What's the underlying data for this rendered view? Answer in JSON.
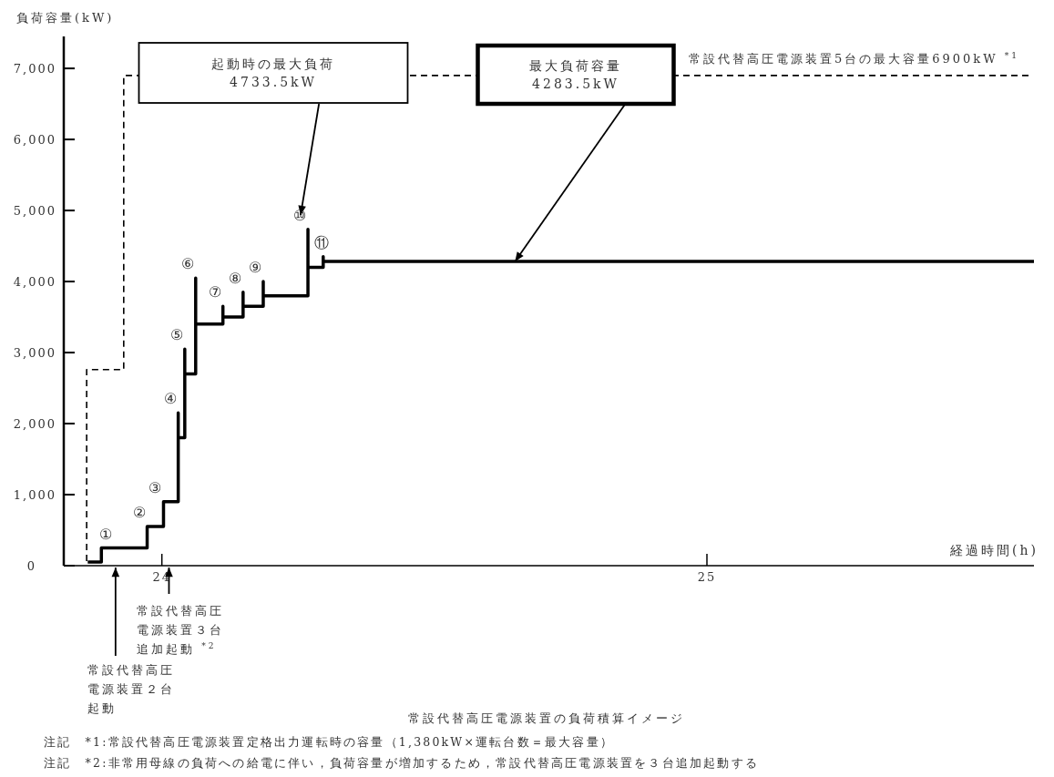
{
  "chart_data": {
    "type": "line",
    "title": "常設代替高圧電源装置の負荷積算イメージ",
    "xlabel": "経過時間(h)",
    "ylabel": "負荷容量(kW)",
    "xlim": [
      23.82,
      25.6
    ],
    "ylim": [
      0,
      7450
    ],
    "xticks": [
      24,
      25
    ],
    "yticks": [
      0,
      {
        "value": 1000,
        "label": "1,000"
      },
      {
        "value": 2000,
        "label": "2,000"
      },
      {
        "value": 3000,
        "label": "3,000"
      },
      {
        "value": 4000,
        "label": "4,000"
      },
      {
        "value": 5000,
        "label": "5,000"
      },
      {
        "value": 6000,
        "label": "6,000"
      },
      {
        "value": 7000,
        "label": "7,000"
      }
    ],
    "grid": false,
    "series": [
      {
        "color": "#000000",
        "line_style": "solid",
        "x": [
          23.864,
          23.889,
          23.889,
          23.973,
          23.973,
          24.003,
          24.003,
          24.03,
          24.03,
          24.03,
          24.042,
          24.042,
          24.042,
          24.062,
          24.062,
          24.062,
          24.112,
          24.112,
          24.112,
          24.149,
          24.149,
          24.149,
          24.186,
          24.186,
          24.186,
          24.268,
          24.268,
          24.268,
          24.296,
          24.296,
          24.296,
          25.6
        ],
        "values": [
          50,
          50,
          250,
          250,
          550,
          550,
          900,
          900,
          2150,
          1800,
          1800,
          3050,
          2700,
          2700,
          4050,
          3400,
          3400,
          3650,
          3500,
          3500,
          3850,
          3650,
          3650,
          4000,
          3800,
          3800,
          4733.5,
          4200,
          4200,
          4350,
          4283.5,
          4283.5
        ]
      },
      {
        "name": "常設代替高圧電源装置5台の最大容量6900kW $^{*1}$",
        "color": "#000000",
        "line_style": "dashed",
        "x": [
          23.862,
          23.862,
          23.93,
          23.93,
          25.59
        ],
        "values": [
          0,
          2760,
          2760,
          6900,
          6900
        ]
      }
    ],
    "annotations": [
      {
        "text": "①",
        "x": 23.889,
        "y": 250
      },
      {
        "text": "②",
        "x": 23.973,
        "y": 550
      },
      {
        "text": "③",
        "x": 24.003,
        "y": 900
      },
      {
        "text": "④",
        "x": 24.03,
        "y": 2150
      },
      {
        "text": "⑤",
        "x": 24.042,
        "y": 3050
      },
      {
        "text": "⑥",
        "x": 24.062,
        "y": 4050
      },
      {
        "text": "⑦",
        "x": 24.112,
        "y": 3650
      },
      {
        "text": "⑧",
        "x": 24.149,
        "y": 3850
      },
      {
        "text": "⑨",
        "x": 24.186,
        "y": 4000
      },
      {
        "text": "⑩",
        "x": 24.268,
        "y": 4733.5
      },
      {
        "text": "⑪",
        "x": 24.296,
        "y": 4350
      },
      "起動時の最大負荷\n4733.5kW",
      {
        "text": "最大負荷容量\n4283.5kW",
        "x": 24.648,
        "y": 4283.5
      },
      "常設代替高圧電源装置２台起動",
      "常設代替高圧電源装置３台追加起動 $^{*2}$",
      "注記　*1:常設代替高圧電源装置定格出力運転時の容量（1,380kW×運転台数＝最大容量）",
      "注記　*2:非常用母線の負荷への給電に伴い，負荷容量が増加するため，常設代替高圧電源装置を３台追加起動する"
    ]
  }
}
